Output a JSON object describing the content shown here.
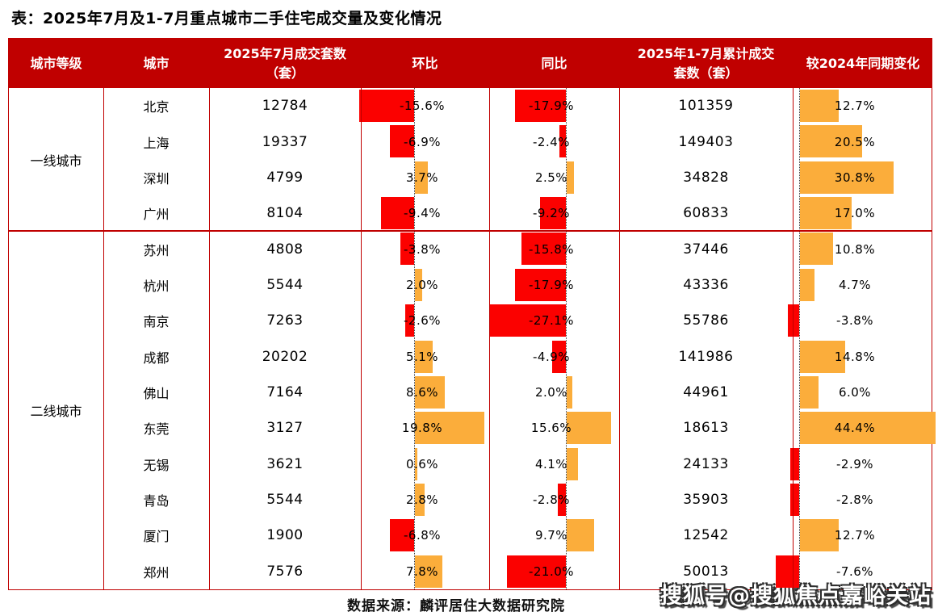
{
  "title": "表：2025年7月及1-7月重点城市二手住宅成交量及变化情况",
  "footer": {
    "source": "数据来源：麟评居住大数据研究院",
    "watermark": "搜狐号@搜狐焦点嘉峪关站"
  },
  "colors": {
    "header_bg": "#C00000",
    "border": "#C00000",
    "bar_negative": "#FB0100",
    "bar_positive": "#FBAD3B"
  },
  "table": {
    "headers": [
      "城市等级",
      "城市",
      "2025年7月成交套数（套）",
      "环比",
      "同比",
      "2025年1-7月累计成交套数（套）",
      "较2024年同期变化"
    ],
    "groups": [
      {
        "tier": "一线城市",
        "rows": [
          {
            "city": "北京",
            "jul": "12784",
            "mom": -15.6,
            "yoy": -17.9,
            "cum": "101359",
            "ytd": 12.7
          },
          {
            "city": "上海",
            "jul": "19337",
            "mom": -6.9,
            "yoy": -2.4,
            "cum": "149403",
            "ytd": 20.5
          },
          {
            "city": "深圳",
            "jul": "4799",
            "mom": 3.7,
            "yoy": 2.5,
            "cum": "34828",
            "ytd": 30.8
          },
          {
            "city": "广州",
            "jul": "8104",
            "mom": -9.4,
            "yoy": -9.2,
            "cum": "60833",
            "ytd": 17.0
          }
        ]
      },
      {
        "tier": "二线城市",
        "rows": [
          {
            "city": "苏州",
            "jul": "4808",
            "mom": -3.8,
            "yoy": -15.8,
            "cum": "37446",
            "ytd": 10.8
          },
          {
            "city": "杭州",
            "jul": "5544",
            "mom": 2.0,
            "yoy": -17.9,
            "cum": "43336",
            "ytd": 4.7
          },
          {
            "city": "南京",
            "jul": "7263",
            "mom": -2.6,
            "yoy": -27.1,
            "cum": "55786",
            "ytd": -3.8
          },
          {
            "city": "成都",
            "jul": "20202",
            "mom": 5.1,
            "yoy": -4.9,
            "cum": "141986",
            "ytd": 14.8
          },
          {
            "city": "佛山",
            "jul": "7164",
            "mom": 8.6,
            "yoy": 2.0,
            "cum": "44961",
            "ytd": 6.0
          },
          {
            "city": "东莞",
            "jul": "3127",
            "mom": 19.8,
            "yoy": 15.6,
            "cum": "18613",
            "ytd": 44.4
          },
          {
            "city": "无锡",
            "jul": "3621",
            "mom": 0.6,
            "yoy": 4.1,
            "cum": "24133",
            "ytd": -2.9
          },
          {
            "city": "青岛",
            "jul": "5544",
            "mom": 2.8,
            "yoy": -2.8,
            "cum": "35903",
            "ytd": -2.8
          },
          {
            "city": "厦门",
            "jul": "1900",
            "mom": -6.8,
            "yoy": 9.7,
            "cum": "12542",
            "ytd": 12.7
          },
          {
            "city": "郑州",
            "jul": "7576",
            "mom": 7.8,
            "yoy": -21.0,
            "cum": "50013",
            "ytd": -7.6
          }
        ]
      }
    ]
  },
  "chart_data": {
    "type": "table",
    "title": "2025年7月及1-7月重点城市二手住宅成交量及变化情况",
    "columns": [
      "城市等级",
      "城市",
      "2025年7月成交套数（套）",
      "环比",
      "同比",
      "2025年1-7月累计成交套数（套）",
      "较2024年同期变化"
    ],
    "rows": [
      [
        "一线城市",
        "北京",
        12784,
        "-15.6%",
        "-17.9%",
        101359,
        "12.7%"
      ],
      [
        "一线城市",
        "上海",
        19337,
        "-6.9%",
        "-2.4%",
        149403,
        "20.5%"
      ],
      [
        "一线城市",
        "深圳",
        4799,
        "3.7%",
        "2.5%",
        34828,
        "30.8%"
      ],
      [
        "一线城市",
        "广州",
        8104,
        "-9.4%",
        "-9.2%",
        60833,
        "17.0%"
      ],
      [
        "二线城市",
        "苏州",
        4808,
        "-3.8%",
        "-15.8%",
        37446,
        "10.8%"
      ],
      [
        "二线城市",
        "杭州",
        5544,
        "2.0%",
        "-17.9%",
        43336,
        "4.7%"
      ],
      [
        "二线城市",
        "南京",
        7263,
        "-2.6%",
        "-27.1%",
        55786,
        "-3.8%"
      ],
      [
        "二线城市",
        "成都",
        20202,
        "5.1%",
        "-4.9%",
        141986,
        "14.8%"
      ],
      [
        "二线城市",
        "佛山",
        7164,
        "8.6%",
        "2.0%",
        44961,
        "6.0%"
      ],
      [
        "二线城市",
        "东莞",
        3127,
        "19.8%",
        "15.6%",
        18613,
        "44.4%"
      ],
      [
        "二线城市",
        "无锡",
        3621,
        "0.6%",
        "4.1%",
        24133,
        "-2.9%"
      ],
      [
        "二线城市",
        "青岛",
        5544,
        "2.8%",
        "-2.8%",
        35903,
        "-2.8%"
      ],
      [
        "二线城市",
        "厦门",
        1900,
        "-6.8%",
        "9.7%",
        12542,
        "12.7%"
      ],
      [
        "二线城市",
        "郑州",
        7576,
        "7.8%",
        "-21.0%",
        50013,
        "-7.6%"
      ]
    ],
    "notes": "环比/同比/较2024年同期变化 columns contain in-cell bar charts: red bars for negative values, orange bars for positive values, dotted vertical zero baseline"
  }
}
